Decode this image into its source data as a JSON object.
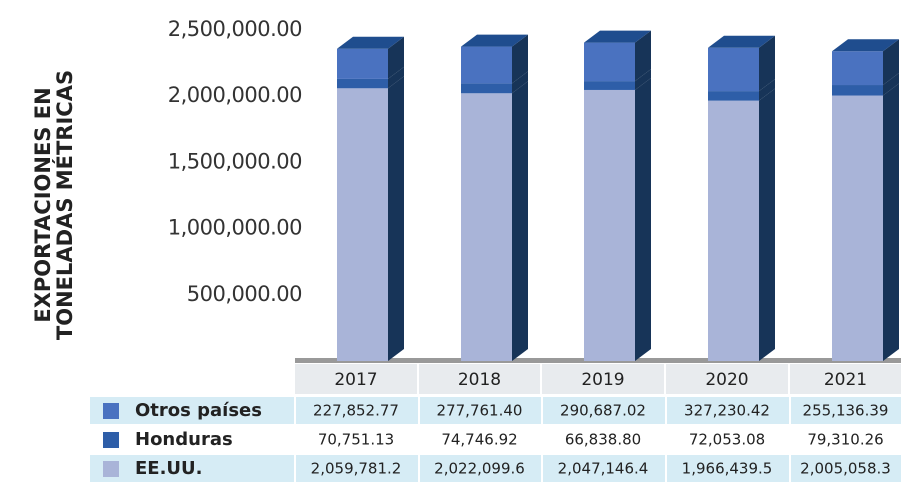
{
  "chart_data": {
    "type": "bar",
    "stacked": true,
    "y_label": [
      "EXPORTACIONES EN",
      "TONELADAS MÉTRICAS"
    ],
    "categories": [
      "2017",
      "2018",
      "2019",
      "2020",
      "2021"
    ],
    "ylim": [
      0,
      2500000
    ],
    "yticks": [
      {
        "value": 500000,
        "label": "500,000.00"
      },
      {
        "value": 1000000,
        "label": "1,000,000.00"
      },
      {
        "value": 1500000,
        "label": "1,500,000.00"
      },
      {
        "value": 2000000,
        "label": "2,000,000.00"
      },
      {
        "value": 2500000,
        "label": "2,500,000.00"
      }
    ],
    "series": [
      {
        "name": "EE.UU.",
        "color": "#a9b4d8",
        "values": [
          2059781.2,
          2022099.6,
          2047146.4,
          1966439.5,
          2005058.3
        ],
        "value_labels": [
          "2,059,781.2",
          "2,022,099.6",
          "2,047,146.4",
          "1,966,439.5",
          "2,005,058.3"
        ]
      },
      {
        "name": "Honduras",
        "color": "#2e5ea8",
        "values": [
          70751.13,
          74746.92,
          66838.8,
          72053.08,
          79310.26
        ],
        "value_labels": [
          "70,751.13",
          "74,746.92",
          "66,838.80",
          "72,053.08",
          "79,310.26"
        ]
      },
      {
        "name": "Otros países",
        "color": "#4a72c0",
        "values": [
          227852.77,
          277761.4,
          290687.02,
          327230.42,
          255136.39
        ],
        "value_labels": [
          "227,852.77",
          "277,761.40",
          "290,687.02",
          "327,230.42",
          "255,136.39"
        ]
      }
    ]
  }
}
